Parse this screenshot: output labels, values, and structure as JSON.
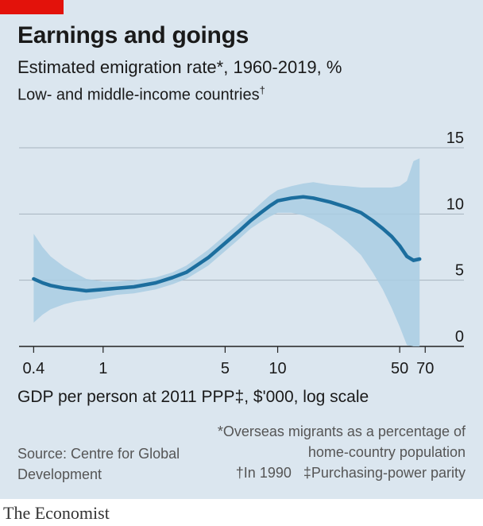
{
  "header": {
    "title": "Earnings and goings",
    "subtitle": "Estimated emigration rate*, 1960-2019, %",
    "subtitle2": "Low- and middle-income countries",
    "subtitle2_mark": "†"
  },
  "colors": {
    "line": "#1c6e9e",
    "band": "#a9cce3",
    "background": "#dbe6ef",
    "grid": "#a7b4bf",
    "brand_red": "#e3120b"
  },
  "chart_data": {
    "type": "line",
    "title": "Estimated emigration rate*, 1960-2019, %",
    "xlabel": "GDP per person at 2011 PPP‡, $'000, log scale",
    "ylabel": "",
    "x_scale": "log",
    "xlim": [
      0.33,
      80
    ],
    "ylim": [
      0,
      15
    ],
    "x_ticks": [
      0.4,
      1,
      5,
      10,
      50,
      70
    ],
    "x_tick_labels": [
      "0.4",
      "1",
      "5",
      "10",
      "50",
      "70"
    ],
    "y_ticks": [
      0,
      5,
      10,
      15
    ],
    "y_tick_labels": [
      "0",
      "5",
      "10",
      "15"
    ],
    "grid": true,
    "series": [
      {
        "role": "central estimate",
        "x": [
          0.4,
          0.45,
          0.5,
          0.6,
          0.7,
          0.8,
          1.0,
          1.2,
          1.5,
          2.0,
          2.5,
          3.0,
          4.0,
          5.0,
          6.0,
          7.0,
          8.0,
          9.0,
          10.0,
          12.0,
          14.0,
          16.0,
          20.0,
          25.0,
          30.0,
          35.0,
          40.0,
          45.0,
          50.0,
          55.0,
          60.0,
          65.0
        ],
        "y": [
          5.1,
          4.8,
          4.6,
          4.4,
          4.3,
          4.2,
          4.3,
          4.4,
          4.5,
          4.8,
          5.2,
          5.6,
          6.7,
          7.8,
          8.7,
          9.5,
          10.1,
          10.6,
          11.0,
          11.2,
          11.3,
          11.2,
          10.9,
          10.5,
          10.1,
          9.5,
          8.9,
          8.3,
          7.6,
          6.8,
          6.5,
          6.6
        ]
      },
      {
        "role": "confidence band",
        "x": [
          0.4,
          0.45,
          0.5,
          0.6,
          0.7,
          0.8,
          1.0,
          1.2,
          1.5,
          2.0,
          2.5,
          3.0,
          4.0,
          5.0,
          6.0,
          7.0,
          8.0,
          9.0,
          10.0,
          12.0,
          14.0,
          16.0,
          20.0,
          25.0,
          30.0,
          35.0,
          40.0,
          45.0,
          50.0,
          55.0,
          60.0,
          65.0
        ],
        "upper": [
          8.5,
          7.5,
          6.8,
          6.0,
          5.5,
          5.1,
          4.9,
          4.9,
          5.0,
          5.2,
          5.6,
          6.1,
          7.3,
          8.4,
          9.3,
          10.1,
          10.8,
          11.4,
          11.8,
          12.1,
          12.3,
          12.4,
          12.2,
          12.1,
          12.0,
          12.0,
          12.0,
          12.0,
          12.1,
          12.5,
          14.0,
          14.2
        ],
        "lower": [
          1.8,
          2.4,
          2.8,
          3.2,
          3.4,
          3.5,
          3.7,
          3.9,
          4.0,
          4.3,
          4.7,
          5.1,
          6.1,
          7.2,
          8.1,
          8.9,
          9.4,
          9.8,
          10.1,
          10.1,
          9.9,
          9.6,
          8.9,
          7.9,
          6.9,
          5.6,
          4.3,
          2.9,
          1.5,
          0.1,
          0.0,
          0.0
        ]
      }
    ]
  },
  "footer": {
    "source": "Source: Centre for Global Development",
    "note1": "*Overseas migrants as a percentage of home-country population",
    "note2": "†In 1990",
    "note3": "‡Purchasing-power parity",
    "brand": "The Economist"
  }
}
